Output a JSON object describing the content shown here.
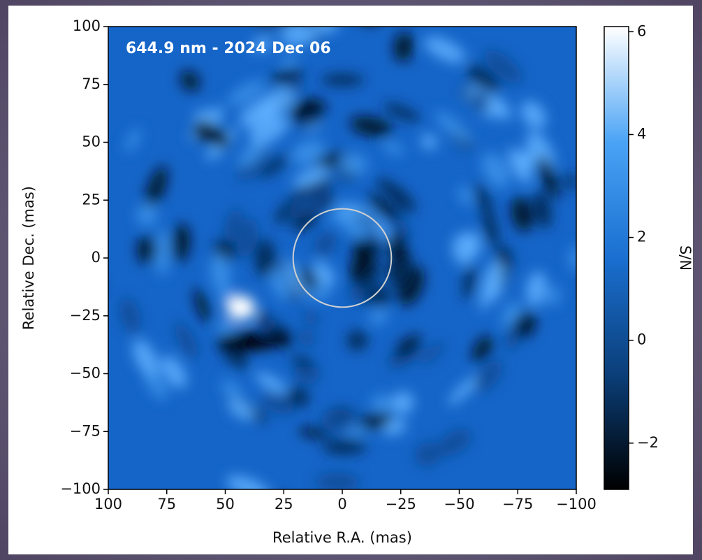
{
  "chart_data": {
    "type": "image",
    "annotation": "644.9 nm - 2024 Dec 06",
    "xlabel": "Relative R.A. (mas)",
    "ylabel": "Relative Dec. (mas)",
    "xlim": [
      100,
      -100
    ],
    "ylim": [
      -100,
      100
    ],
    "xticks": [
      100,
      75,
      50,
      25,
      0,
      {
        "value": -25,
        "label": "−25"
      },
      {
        "value": -50,
        "label": "−50"
      },
      {
        "value": -75,
        "label": "−75"
      },
      {
        "value": -100,
        "label": "−100"
      }
    ],
    "yticks": [
      {
        "value": -100,
        "label": "−100"
      },
      {
        "value": -75,
        "label": "−75"
      },
      {
        "value": -50,
        "label": "−50"
      },
      {
        "value": -25,
        "label": "−25"
      },
      0,
      25,
      50,
      75,
      100
    ],
    "circle": {
      "x": 0,
      "y": 0,
      "radius": 21,
      "color": "#d0d0d0"
    },
    "colorbar": {
      "label": "S/N",
      "lim": [
        -2.9,
        6.1
      ],
      "ticks": [
        {
          "value": -2,
          "label": "−2"
        },
        0,
        2,
        4,
        6
      ],
      "colors": [
        "#000000",
        "#0b3f7a",
        "#1a6fd0",
        "#4aa3f5",
        "#ffffff"
      ]
    }
  }
}
